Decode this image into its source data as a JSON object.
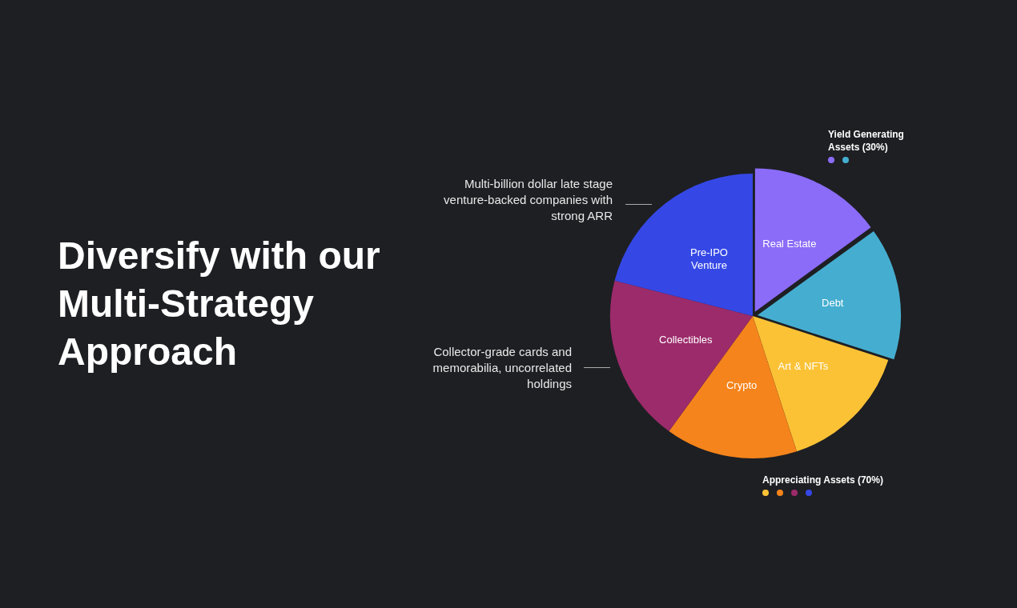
{
  "chart_data": {
    "type": "pie",
    "title": "Diversify with our Multi-Strategy Approach",
    "categories": [
      "Real Estate",
      "Debt",
      "Art & NFTs",
      "Crypto",
      "Collectibles",
      "Pre-IPO Venture"
    ],
    "values": [
      15,
      15,
      15,
      15,
      19,
      21
    ],
    "colors": [
      "#8b6cf9",
      "#45aed0",
      "#fbc236",
      "#f4841b",
      "#9c2b6b",
      "#3548e6"
    ],
    "legend": false,
    "annotations": [
      "Yield Generating Assets (30%)",
      "Appreciating  Assets (70%)",
      "Multi-billion dollar late stage venture-backed companies with strong ARR",
      "Collector-grade cards and memorabilia, uncorrelated holdings"
    ]
  }
}
